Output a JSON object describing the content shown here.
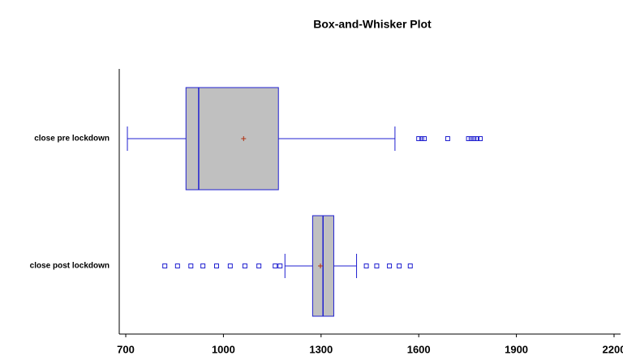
{
  "chart_data": {
    "type": "box",
    "title": "Box-and-Whisker Plot",
    "categories": [
      "close pre lockdown",
      "close post lockdown"
    ],
    "boxes": [
      {
        "min": 705,
        "q1": 885,
        "median": 924,
        "q3": 1169,
        "max": 1527,
        "mean": 1062,
        "outliers": [
          1600,
          1609,
          1617,
          1689,
          1753,
          1761,
          1770,
          1779,
          1789
        ]
      },
      {
        "min": 1189,
        "q1": 1274,
        "median": 1306,
        "q3": 1339,
        "max": 1409,
        "mean": 1298,
        "outliers": [
          820,
          859,
          900,
          937,
          979,
          1021,
          1066,
          1109,
          1159,
          1174,
          1439,
          1471,
          1510,
          1540,
          1574
        ]
      }
    ],
    "box_color": "#c0c0c0",
    "line_color": "#2020d0",
    "mean_color": "#b03010",
    "xlim": [
      680,
      2220
    ],
    "xticks": [
      700,
      1000,
      1300,
      1600,
      1900,
      2200
    ]
  }
}
